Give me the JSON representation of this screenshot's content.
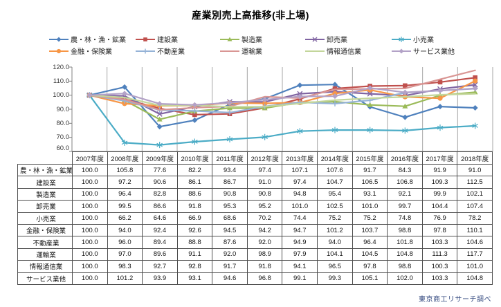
{
  "title": "産業別売上高推移(非上場)",
  "footer": {
    "credit": "東京商工リサーチ調べ",
    "color": "#31477e"
  },
  "colors": {
    "gridline": "#a6a6a6",
    "axis": "#808080",
    "table_border": "#4d4d4d"
  },
  "chart_data": {
    "type": "line",
    "title": "産業別売上高推移(非上場)",
    "categories": [
      "2007年度",
      "2008年度",
      "2009年度",
      "2010年度",
      "2011年度",
      "2012年度",
      "2013年度",
      "2014年度",
      "2015年度",
      "2016年度",
      "2017年度",
      "2018年度"
    ],
    "series": [
      {
        "name": "農・林・漁・鉱業",
        "color": "#4F81BD",
        "marker": "diamond",
        "values": [
          100.0,
          105.8,
          77.6,
          82.2,
          93.4,
          97.4,
          107.1,
          107.6,
          91.7,
          84.3,
          91.9,
          91.0
        ]
      },
      {
        "name": "建設業",
        "color": "#C0504D",
        "marker": "square",
        "values": [
          100.0,
          97.2,
          90.6,
          86.1,
          86.7,
          91.0,
          97.4,
          104.7,
          106.5,
          106.8,
          109.3,
          112.5
        ]
      },
      {
        "name": "製造業",
        "color": "#9BBB59",
        "marker": "triangle",
        "values": [
          100.0,
          96.4,
          82.8,
          88.6,
          90.8,
          90.8,
          94.8,
          95.4,
          93.1,
          92.1,
          99.9,
          102.1
        ]
      },
      {
        "name": "卸売業",
        "color": "#8064A2",
        "marker": "x",
        "values": [
          100.0,
          99.5,
          86.6,
          91.8,
          95.3,
          95.2,
          101.0,
          102.5,
          101.0,
          99.7,
          104.4,
          107.4
        ]
      },
      {
        "name": "小売業",
        "color": "#4BACC6",
        "marker": "asterisk",
        "values": [
          100.0,
          66.2,
          64.6,
          66.9,
          68.6,
          70.2,
          74.4,
          75.2,
          75.2,
          74.8,
          76.9,
          78.2
        ]
      },
      {
        "name": "金融・保険業",
        "color": "#F79646",
        "marker": "circle",
        "values": [
          100.0,
          94.0,
          92.4,
          92.6,
          94.5,
          94.2,
          94.7,
          101.2,
          103.7,
          98.8,
          97.8,
          110.1
        ]
      },
      {
        "name": "不動産業",
        "color": "#95B3D7",
        "marker": "plus",
        "values": [
          100.0,
          96.0,
          89.4,
          88.8,
          87.6,
          92.0,
          94.9,
          94.0,
          96.4,
          101.8,
          103.3,
          104.6
        ]
      },
      {
        "name": "運輸業",
        "color": "#D99694",
        "marker": "none",
        "values": [
          100.0,
          97.0,
          89.6,
          91.1,
          92.0,
          98.9,
          97.9,
          104.1,
          104.5,
          104.8,
          111.3,
          117.7
        ]
      },
      {
        "name": "情報通信業",
        "color": "#C3D69B",
        "marker": "none",
        "values": [
          100.0,
          98.3,
          92.7,
          92.8,
          91.7,
          91.8,
          94.1,
          96.5,
          97.8,
          98.8,
          100.3,
          101.0
        ]
      },
      {
        "name": "サービス業他",
        "color": "#B3A2C7",
        "marker": "diamond",
        "values": [
          100.0,
          101.2,
          93.9,
          93.1,
          94.6,
          96.8,
          99.1,
          99.3,
          105.1,
          102.0,
          103.3,
          104.8
        ]
      }
    ],
    "ylim": [
      60,
      120
    ],
    "ytick_step": 10,
    "ytick_labels": [
      "120.0",
      "110.0",
      "100.0",
      "90.0",
      "80.0",
      "70.0",
      "60.0"
    ],
    "grid": "vertical-only",
    "legend_position": "top",
    "data_table_shown": true
  }
}
